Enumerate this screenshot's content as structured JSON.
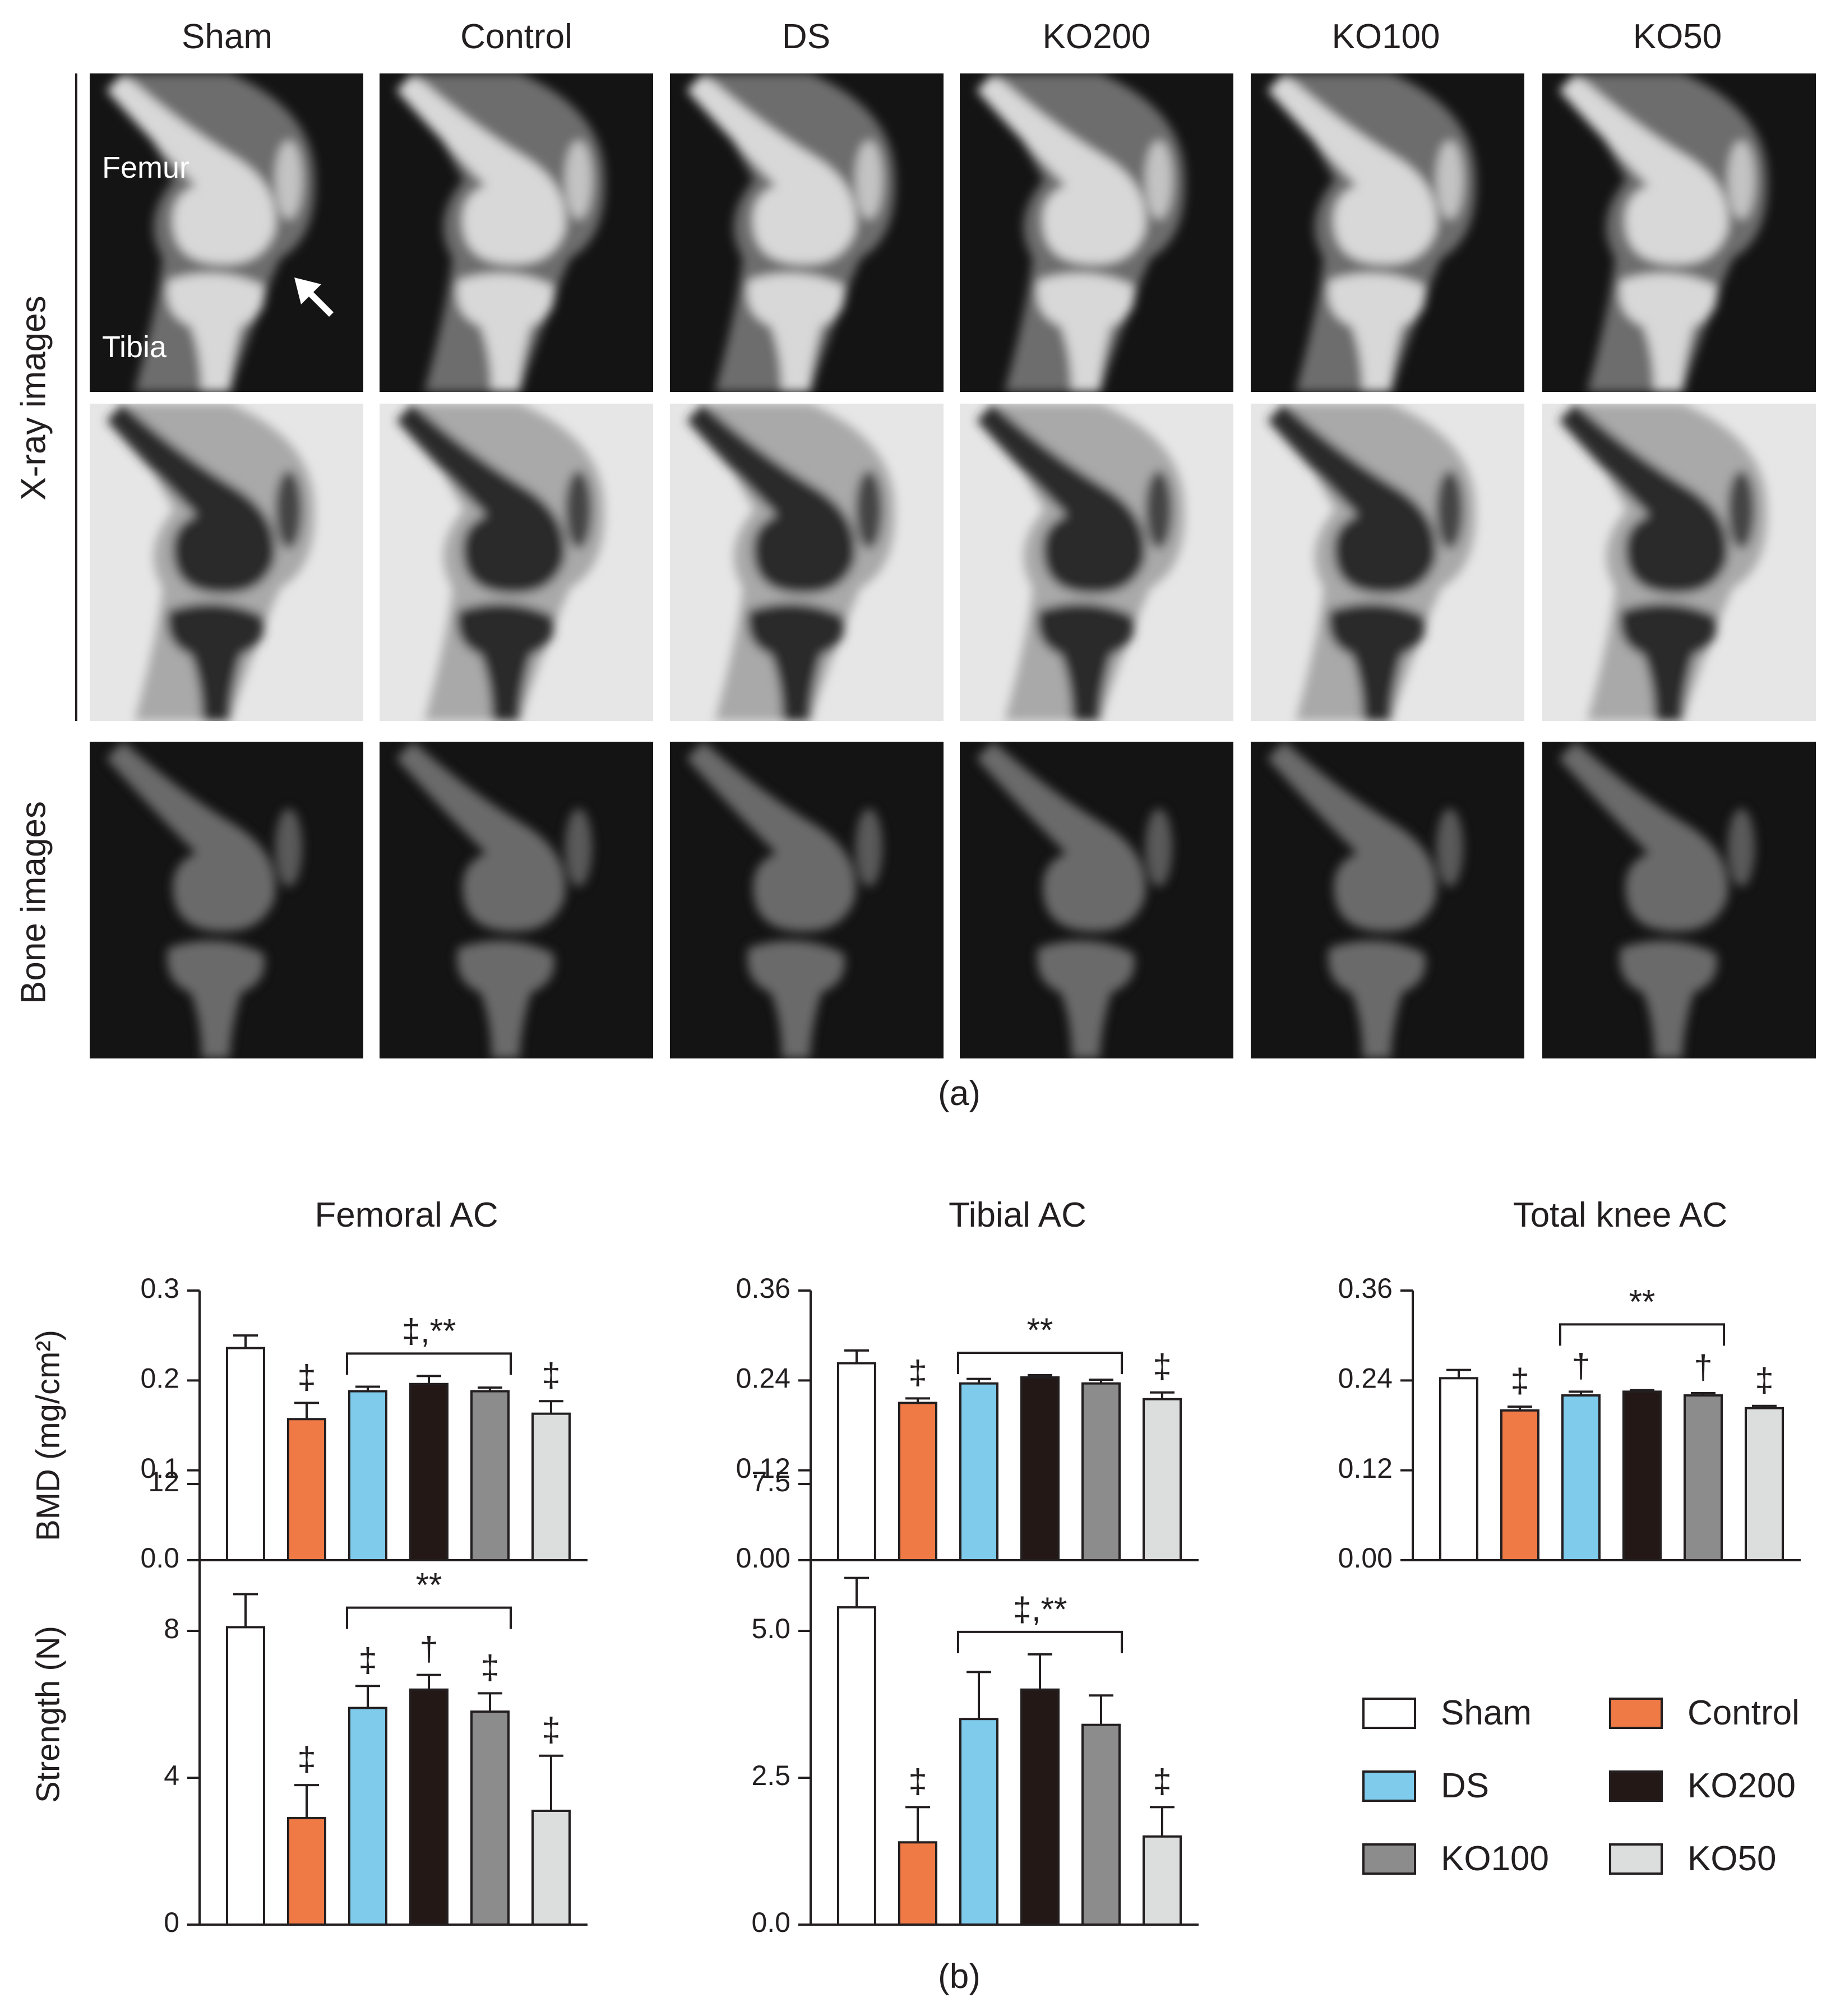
{
  "panel_a": {
    "groups": [
      "Sham",
      "Control",
      "DS",
      "KO200",
      "KO100",
      "KO50"
    ],
    "row_label_xray": "X-ray images",
    "row_label_bone": "Bone images",
    "annotations": {
      "femur": "Femur",
      "tibia": "Tibia"
    },
    "tag": "(a)"
  },
  "panel_b_tag": "(b)",
  "colors": {
    "Sham": "#ffffff",
    "Control": "#f07a45",
    "DS": "#7ecbec",
    "KO200": "#231815",
    "KO100": "#8c8c8c",
    "KO50": "#dcdedd"
  },
  "legend": [
    "Sham",
    "Control",
    "DS",
    "KO200",
    "KO100",
    "KO50"
  ],
  "chart_data": [
    {
      "type": "bar",
      "title": "Femoral AC",
      "ylabel": "BMD (mg/cm²)",
      "categories": [
        "Sham",
        "Control",
        "DS",
        "KO200",
        "KO100",
        "KO50"
      ],
      "values": [
        0.236,
        0.157,
        0.188,
        0.196,
        0.188,
        0.163
      ],
      "errors": [
        0.014,
        0.018,
        0.005,
        0.009,
        0.004,
        0.014
      ],
      "ylim": [
        0,
        0.3
      ],
      "yticks": [
        "0.0",
        "0.1",
        "0.2",
        "0.3"
      ],
      "marks": [
        "",
        "‡",
        "",
        "",
        "",
        "‡"
      ],
      "bracket": {
        "from": 2,
        "to": 4,
        "label": "‡,**"
      }
    },
    {
      "type": "bar",
      "title": "Tibial AC",
      "ylabel": "",
      "categories": [
        "Sham",
        "Control",
        "DS",
        "KO200",
        "KO100",
        "KO50"
      ],
      "values": [
        0.263,
        0.21,
        0.236,
        0.244,
        0.236,
        0.215
      ],
      "errors": [
        0.017,
        0.006,
        0.006,
        0.003,
        0.005,
        0.009
      ],
      "ylim": [
        0,
        0.36
      ],
      "yticks": [
        "0.00",
        "0.12",
        "0.24",
        "0.36"
      ],
      "marks": [
        "",
        "‡",
        "",
        "",
        "",
        "‡"
      ],
      "bracket": {
        "from": 2,
        "to": 4,
        "label": "**"
      }
    },
    {
      "type": "bar",
      "title": "Total knee AC",
      "ylabel": "",
      "categories": [
        "Sham",
        "Control",
        "DS",
        "KO200",
        "KO100",
        "KO50"
      ],
      "values": [
        0.243,
        0.2,
        0.22,
        0.225,
        0.22,
        0.203
      ],
      "errors": [
        0.011,
        0.005,
        0.005,
        0.002,
        0.003,
        0.003
      ],
      "ylim": [
        0,
        0.36
      ],
      "yticks": [
        "0.00",
        "0.12",
        "0.24",
        "0.36"
      ],
      "marks": [
        "",
        "‡",
        "†",
        "",
        "†",
        "‡"
      ],
      "bracket": {
        "from": 2,
        "to": 4,
        "label": "**"
      }
    },
    {
      "type": "bar",
      "title": "",
      "ylabel": "Strength (N)",
      "categories": [
        "Sham",
        "Control",
        "DS",
        "KO200",
        "KO100",
        "KO50"
      ],
      "values": [
        8.1,
        2.9,
        5.9,
        6.4,
        5.8,
        3.1
      ],
      "errors": [
        0.9,
        0.9,
        0.6,
        0.4,
        0.5,
        1.5
      ],
      "ylim": [
        0,
        12
      ],
      "yticks": [
        "0",
        "4",
        "8",
        "12"
      ],
      "marks": [
        "",
        "‡",
        "‡",
        "†",
        "‡",
        "‡"
      ],
      "bracket": {
        "from": 2,
        "to": 4,
        "label": "**"
      }
    },
    {
      "type": "bar",
      "title": "",
      "ylabel": "",
      "categories": [
        "Sham",
        "Control",
        "DS",
        "KO200",
        "KO100",
        "KO50"
      ],
      "values": [
        5.4,
        1.4,
        3.5,
        4.0,
        3.4,
        1.5
      ],
      "errors": [
        0.5,
        0.6,
        0.8,
        0.6,
        0.5,
        0.5
      ],
      "ylim": [
        0,
        7.5
      ],
      "yticks": [
        "0.0",
        "2.5",
        "5.0",
        "7.5"
      ],
      "marks": [
        "",
        "‡",
        "",
        "",
        "",
        "‡"
      ],
      "bracket": {
        "from": 2,
        "to": 4,
        "label": "‡,**"
      }
    }
  ]
}
